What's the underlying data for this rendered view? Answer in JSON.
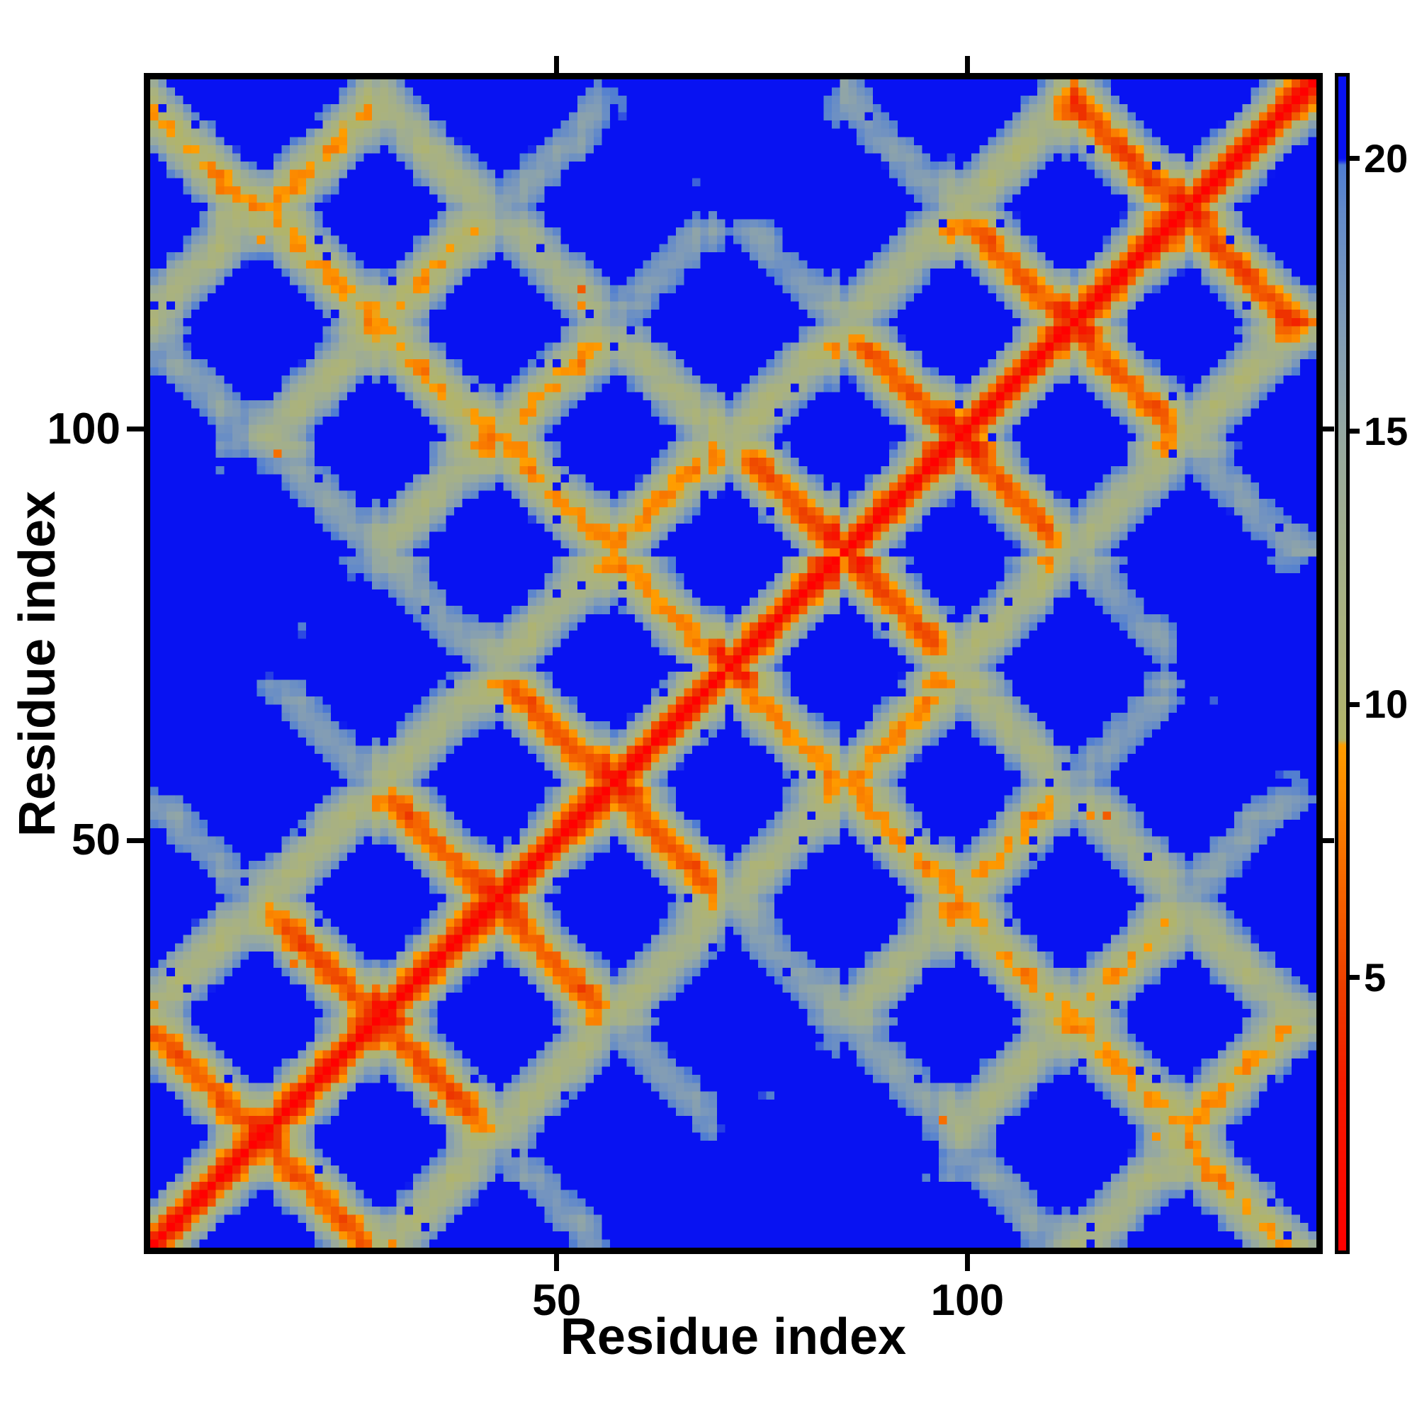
{
  "page": {
    "background": "#ffffff"
  },
  "chart_data": {
    "type": "heatmap",
    "title": "",
    "xlabel": "Residue index",
    "ylabel": "Residue index",
    "x_ticks": [
      50,
      100
    ],
    "y_ticks": [
      50,
      100
    ],
    "axis_range": [
      1,
      142
    ],
    "n_residues": 142,
    "orientation": "origin-bottom-left",
    "grid": false,
    "legend": "none",
    "colorbar": {
      "position": "right",
      "ticks": [
        5,
        10,
        15,
        20
      ],
      "value_range": [
        0,
        21.5
      ]
    },
    "colormap_stops": [
      {
        "v": 0.0,
        "c": "#ff0000"
      },
      {
        "v": 3.0,
        "c": "#f51a00"
      },
      {
        "v": 4.6,
        "c": "#ec3a00"
      },
      {
        "v": 5.8,
        "c": "#f15400"
      },
      {
        "v": 7.0,
        "c": "#f66c00"
      },
      {
        "v": 8.2,
        "c": "#fb8700"
      },
      {
        "v": 9.25,
        "c": "#ff9e00"
      },
      {
        "v": 9.35,
        "c": "#b2b468"
      },
      {
        "v": 10.5,
        "c": "#adb377"
      },
      {
        "v": 12.0,
        "c": "#a7b184"
      },
      {
        "v": 13.5,
        "c": "#9fad92"
      },
      {
        "v": 15.0,
        "c": "#95a8a2"
      },
      {
        "v": 17.0,
        "c": "#7f9bb8"
      },
      {
        "v": 19.0,
        "c": "#638ac9"
      },
      {
        "v": 19.9,
        "c": "#4f7dd2"
      },
      {
        "v": 20.0,
        "c": "#0812f2"
      },
      {
        "v": 21.5,
        "c": "#0812f2"
      }
    ],
    "matrix_source": {
      "kind": "synthetic-protein-distance-matrix",
      "description": "Pairwise C-alpha distance map of a ~142-residue serpentine beta-sandwich fold: red main diagonal, orange antiparallel hairpin streaks crossing the diagonal about every 14 residues, khaki/gray second-neighbor strand halos, blue (>20) voids, orange N-term/C-term corner contacts, plus speckle noise.",
      "seed": 20,
      "n_strands": 10,
      "strand_len": 12,
      "turn_len": 2,
      "tail_len": 4,
      "ca_step": 3.35,
      "strand_spacing": 5.5,
      "sheet_gap": 8.0,
      "sheet_shift": 2.75,
      "stagger": [
        0,
        2.5,
        -2.5,
        4,
        -3,
        5,
        -5,
        3,
        -4,
        1.5
      ],
      "jitter": 0.9,
      "speckle_orange_p": 0.0035,
      "speckle_blue_p": 0.012,
      "clip_max": 21.5
    }
  }
}
